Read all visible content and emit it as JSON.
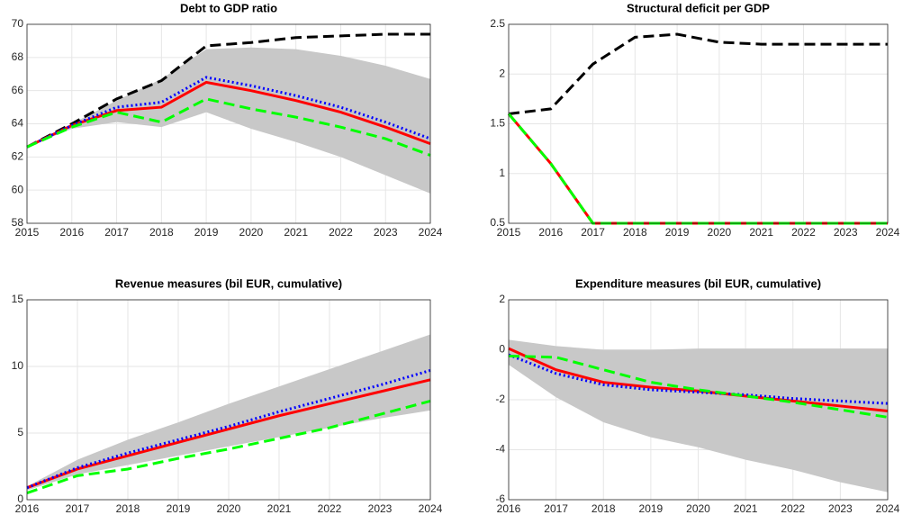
{
  "chart_data": [
    {
      "type": "line",
      "title": "Debt to GDP ratio",
      "x": [
        2015,
        2016,
        2017,
        2018,
        2019,
        2020,
        2021,
        2022,
        2023,
        2024
      ],
      "xlim": [
        2015,
        2024
      ],
      "xticks": [
        2015,
        2016,
        2017,
        2018,
        2019,
        2020,
        2021,
        2022,
        2023,
        2024
      ],
      "ylim": [
        58,
        70
      ],
      "yticks": [
        58,
        60,
        62,
        64,
        66,
        68,
        70
      ],
      "grid": true,
      "band": {
        "color": "#c8c8c8",
        "lower": [
          62.6,
          63.7,
          64.1,
          63.8,
          64.7,
          63.7,
          62.9,
          62.0,
          60.9,
          59.8
        ],
        "upper": [
          62.6,
          64.0,
          65.4,
          66.7,
          68.5,
          68.6,
          68.5,
          68.1,
          67.5,
          66.7
        ]
      },
      "series": [
        {
          "color": "#000000",
          "dash": "dashed",
          "values": [
            62.6,
            64.0,
            65.5,
            66.6,
            68.7,
            68.9,
            69.2,
            69.3,
            69.4,
            69.4
          ]
        },
        {
          "color": "#ff0000",
          "dash": "solid",
          "values": [
            62.6,
            63.9,
            64.8,
            65.0,
            66.5,
            66.0,
            65.4,
            64.7,
            63.8,
            62.8
          ]
        },
        {
          "color": "#0000ff",
          "dash": "dotted",
          "values": [
            62.6,
            63.9,
            65.0,
            65.3,
            66.8,
            66.3,
            65.7,
            65.0,
            64.1,
            63.1
          ]
        },
        {
          "color": "#00ff00",
          "dash": "dashed",
          "values": [
            62.6,
            63.8,
            64.7,
            64.1,
            65.5,
            64.9,
            64.4,
            63.8,
            63.1,
            62.1
          ]
        }
      ]
    },
    {
      "type": "line",
      "title": "Structural deficit per GDP",
      "x": [
        2015,
        2016,
        2017,
        2018,
        2019,
        2020,
        2021,
        2022,
        2023,
        2024
      ],
      "xlim": [
        2015,
        2024
      ],
      "xticks": [
        2015,
        2016,
        2017,
        2018,
        2019,
        2020,
        2021,
        2022,
        2023,
        2024
      ],
      "ylim": [
        0.5,
        2.5
      ],
      "yticks": [
        0.5,
        1,
        1.5,
        2,
        2.5
      ],
      "grid": true,
      "series": [
        {
          "color": "#000000",
          "dash": "dashed",
          "values": [
            1.6,
            1.65,
            2.1,
            2.37,
            2.4,
            2.32,
            2.3,
            2.3,
            2.3,
            2.3
          ]
        },
        {
          "color": "#ff0000",
          "dash": "solid",
          "values": [
            1.6,
            1.1,
            0.5,
            0.5,
            0.5,
            0.5,
            0.5,
            0.5,
            0.5,
            0.5
          ]
        },
        {
          "color": "#00ff00",
          "dash": "dashed",
          "values": [
            1.6,
            1.1,
            0.5,
            0.5,
            0.5,
            0.5,
            0.5,
            0.5,
            0.5,
            0.5
          ]
        }
      ]
    },
    {
      "type": "line",
      "title": "Revenue measures (bil EUR, cumulative)",
      "x": [
        2016,
        2017,
        2018,
        2019,
        2020,
        2021,
        2022,
        2023,
        2024
      ],
      "xlim": [
        2016,
        2024
      ],
      "xticks": [
        2016,
        2017,
        2018,
        2019,
        2020,
        2021,
        2022,
        2023,
        2024
      ],
      "ylim": [
        0,
        15
      ],
      "yticks": [
        0,
        5,
        10,
        15
      ],
      "grid": true,
      "band": {
        "color": "#c8c8c8",
        "lower": [
          0.7,
          1.9,
          2.6,
          3.3,
          4.0,
          4.7,
          5.4,
          6.1,
          6.7
        ],
        "upper": [
          1.0,
          3.0,
          4.5,
          5.8,
          7.2,
          8.5,
          9.8,
          11.1,
          12.4
        ]
      },
      "series": [
        {
          "color": "#ff0000",
          "dash": "solid",
          "values": [
            0.9,
            2.3,
            3.3,
            4.3,
            5.3,
            6.3,
            7.2,
            8.1,
            9.0
          ]
        },
        {
          "color": "#0000ff",
          "dash": "dotted",
          "values": [
            0.9,
            2.4,
            3.5,
            4.5,
            5.5,
            6.6,
            7.6,
            8.6,
            9.7
          ]
        },
        {
          "color": "#00ff00",
          "dash": "dashed",
          "values": [
            0.5,
            1.8,
            2.3,
            3.1,
            3.8,
            4.6,
            5.4,
            6.4,
            7.4
          ]
        }
      ]
    },
    {
      "type": "line",
      "title": "Expenditure measures (bil EUR, cumulative)",
      "x": [
        2016,
        2017,
        2018,
        2019,
        2020,
        2021,
        2022,
        2023,
        2024
      ],
      "xlim": [
        2016,
        2024
      ],
      "xticks": [
        2016,
        2017,
        2018,
        2019,
        2020,
        2021,
        2022,
        2023,
        2024
      ],
      "ylim": [
        -6,
        2
      ],
      "yticks": [
        -6,
        -4,
        -2,
        0,
        2
      ],
      "grid": true,
      "band": {
        "color": "#c8c8c8",
        "lower": [
          -0.6,
          -1.9,
          -2.9,
          -3.5,
          -3.9,
          -4.4,
          -4.8,
          -5.3,
          -5.7
        ],
        "upper": [
          0.4,
          0.15,
          0.0,
          0.0,
          0.05,
          0.05,
          0.05,
          0.05,
          0.05
        ]
      },
      "series": [
        {
          "color": "#ff0000",
          "dash": "solid",
          "values": [
            0.05,
            -0.8,
            -1.3,
            -1.5,
            -1.65,
            -1.85,
            -2.05,
            -2.25,
            -2.45
          ]
        },
        {
          "color": "#0000ff",
          "dash": "dotted",
          "values": [
            -0.2,
            -0.95,
            -1.4,
            -1.6,
            -1.7,
            -1.8,
            -1.95,
            -2.05,
            -2.15
          ]
        },
        {
          "color": "#00ff00",
          "dash": "dashed",
          "values": [
            -0.25,
            -0.3,
            -0.8,
            -1.3,
            -1.6,
            -1.85,
            -2.1,
            -2.4,
            -2.7
          ]
        }
      ]
    }
  ]
}
